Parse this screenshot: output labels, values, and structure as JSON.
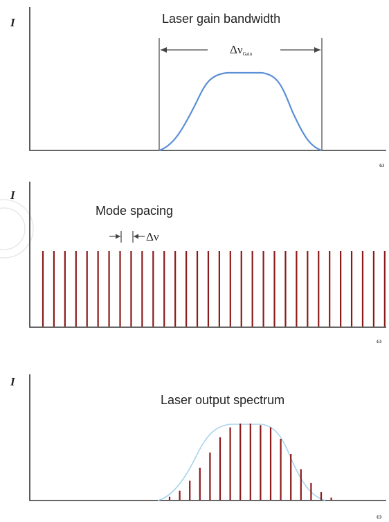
{
  "panel1": {
    "title": "Laser gain bandwidth",
    "y_label": "I",
    "x_label": "ω",
    "bandwidth_label_main": "Δν",
    "bandwidth_label_sub": "Gain"
  },
  "panel2": {
    "title": "Mode spacing",
    "y_label": "I",
    "x_label": "ω",
    "spacing_label": "Δν",
    "mode_count": 32
  },
  "panel3": {
    "title": "Laser output spectrum",
    "y_label": "I",
    "x_label": "ω",
    "envelope_heights": [
      0.04,
      0.12,
      0.25,
      0.42,
      0.62,
      0.82,
      0.95,
      1.0,
      1.0,
      0.98,
      0.95,
      0.8,
      0.6,
      0.4,
      0.22,
      0.1,
      0.03
    ]
  },
  "colors": {
    "gain_curve": "#5b8fd6",
    "mode_line": "#8b1a1a",
    "envelope": "#a9d3ec",
    "axis": "#333333"
  }
}
